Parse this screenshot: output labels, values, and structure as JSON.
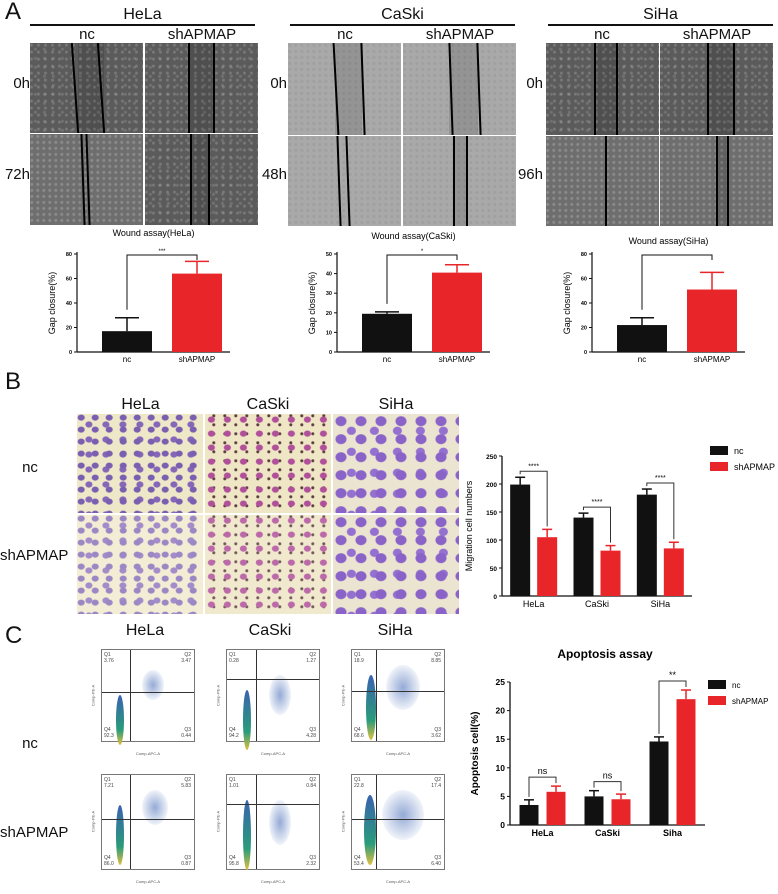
{
  "panels": {
    "A": {
      "letter": "A",
      "groups": [
        {
          "cell_line": "HeLa",
          "columns": [
            "nc",
            "shAPMAP"
          ],
          "rows": [
            "0h",
            "72h"
          ]
        },
        {
          "cell_line": "CaSki",
          "columns": [
            "nc",
            "shAPMAP"
          ],
          "rows": [
            "0h",
            "48h"
          ]
        },
        {
          "cell_line": "SiHa",
          "columns": [
            "nc",
            "shAPMAP"
          ],
          "rows": [
            "0h",
            "96h"
          ]
        }
      ]
    },
    "B": {
      "letter": "B",
      "columns": [
        "HeLa",
        "CaSki",
        "SiHa"
      ],
      "rows": [
        "nc",
        "shAPMAP"
      ]
    },
    "C": {
      "letter": "C",
      "columns": [
        "HeLa",
        "CaSki",
        "SiHa"
      ],
      "rows": [
        "nc",
        "shAPMAP"
      ],
      "flow_axes": {
        "x": "Comp-APC-A",
        "y": "Comp-PE-A"
      },
      "flow_quadrants": [
        {
          "row": "nc",
          "cell_line": "HeLa",
          "Q1": "3.76",
          "Q2": "3.47",
          "Q3": "0.44",
          "Q4": "92.3"
        },
        {
          "row": "nc",
          "cell_line": "CaSki",
          "Q1": "0.28",
          "Q2": "1.27",
          "Q3": "4.28",
          "Q4": "94.2"
        },
        {
          "row": "nc",
          "cell_line": "SiHa",
          "Q1": "18.9",
          "Q2": "8.85",
          "Q3": "3.62",
          "Q4": "68.6"
        },
        {
          "row": "shAPMAP",
          "cell_line": "HeLa",
          "Q1": "7.21",
          "Q2": "5.83",
          "Q3": "0.87",
          "Q4": "86.0"
        },
        {
          "row": "shAPMAP",
          "cell_line": "CaSki",
          "Q1": "1.01",
          "Q2": "0.84",
          "Q3": "2.32",
          "Q4": "95.8"
        },
        {
          "row": "shAPMAP",
          "cell_line": "SiHa",
          "Q1": "22.8",
          "Q2": "17.4",
          "Q3": "6.40",
          "Q4": "53.4"
        }
      ]
    }
  },
  "colors": {
    "nc": "#111111",
    "shAPMAP": "#e8262a"
  },
  "chart_data": [
    {
      "type": "bar",
      "title": "Wound assay(HeLa)",
      "categories": [
        "nc",
        "shAPMAP"
      ],
      "values": [
        17,
        64
      ],
      "errors": [
        11,
        10
      ],
      "xlabel": "",
      "ylabel": "Gap closure(%)",
      "ylim": [
        0,
        80
      ],
      "yticks": [
        0,
        20,
        40,
        60,
        80
      ],
      "significance": "***",
      "colors": [
        "#111111",
        "#e8262a"
      ]
    },
    {
      "type": "bar",
      "title": "Wound assay(CaSki)",
      "categories": [
        "nc",
        "shAPMAP"
      ],
      "values": [
        19.5,
        40.5
      ],
      "errors": [
        1,
        4
      ],
      "xlabel": "",
      "ylabel": "Gap closure(%)",
      "ylim": [
        0,
        50
      ],
      "yticks": [
        0,
        10,
        20,
        30,
        40,
        50
      ],
      "significance": "*",
      "colors": [
        "#111111",
        "#e8262a"
      ]
    },
    {
      "type": "bar",
      "title": "Wound assay(SiHa)",
      "categories": [
        "nc",
        "shAPMAP"
      ],
      "values": [
        22,
        51
      ],
      "errors": [
        6,
        14
      ],
      "xlabel": "",
      "ylabel": "Gap closure(%)",
      "ylim": [
        0,
        80
      ],
      "yticks": [
        0,
        20,
        40,
        60,
        80
      ],
      "significance": "",
      "colors": [
        "#111111",
        "#e8262a"
      ]
    },
    {
      "type": "bar",
      "title": "",
      "categories": [
        "HeLa",
        "CaSki",
        "SiHa"
      ],
      "series": [
        {
          "name": "nc",
          "values": [
            199,
            140,
            181
          ],
          "errors": [
            13,
            8,
            10
          ],
          "color": "#111111"
        },
        {
          "name": "shAPMAP",
          "values": [
            105,
            81,
            85
          ],
          "errors": [
            14,
            9,
            11
          ],
          "color": "#e8262a"
        }
      ],
      "significance": [
        "****",
        "****",
        "****"
      ],
      "xlabel": "",
      "ylabel": "Migration cell numbers",
      "ylim": [
        0,
        250
      ],
      "yticks": [
        0,
        50,
        100,
        150,
        200,
        250
      ],
      "legend_position": "top-right"
    },
    {
      "type": "bar",
      "title": "Apoptosis assay",
      "categories": [
        "HeLa",
        "CaSki",
        "Siha"
      ],
      "series": [
        {
          "name": "nc",
          "values": [
            3.5,
            5.0,
            14.6
          ],
          "errors": [
            0.9,
            1.0,
            0.8
          ],
          "color": "#111111"
        },
        {
          "name": "shAPMAP",
          "values": [
            5.8,
            4.5,
            22.0
          ],
          "errors": [
            1.0,
            0.9,
            1.6
          ],
          "color": "#e8262a"
        }
      ],
      "significance": [
        "ns",
        "ns",
        "**"
      ],
      "xlabel": "",
      "ylabel": "Apoptosis cell(%)",
      "ylim": [
        0,
        25
      ],
      "yticks": [
        0,
        5,
        10,
        15,
        20,
        25
      ],
      "legend_position": "top-right"
    }
  ]
}
